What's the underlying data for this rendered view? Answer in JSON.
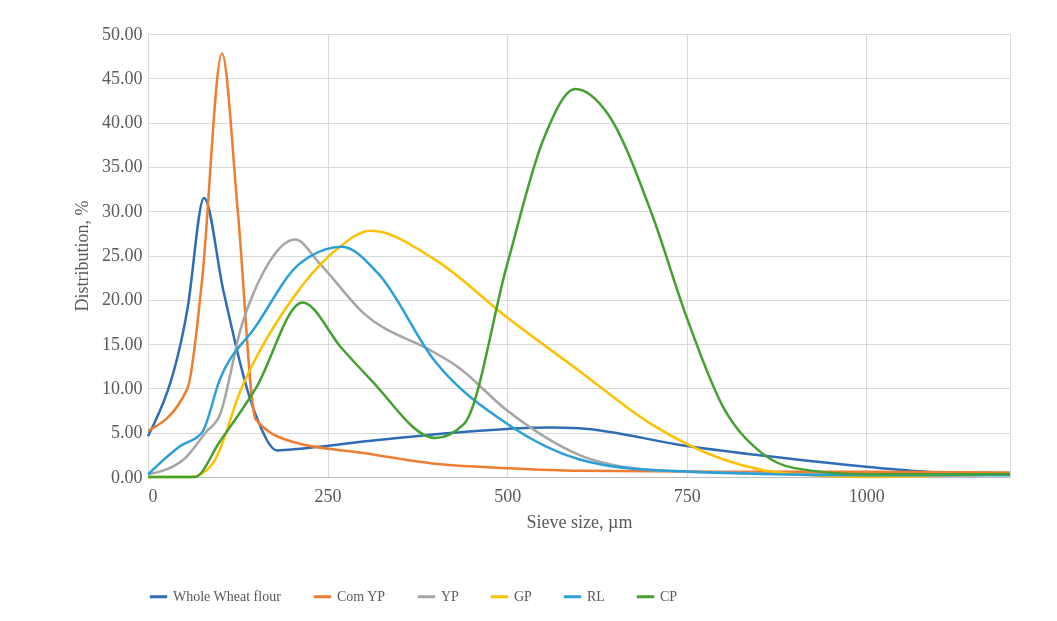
{
  "chart_data": {
    "type": "line",
    "xlabel": "Sieve size, µm",
    "ylabel": "Distribution, %",
    "xlim": [
      0,
      1200
    ],
    "xticks": [
      0,
      250,
      500,
      750,
      1000
    ],
    "ylim": [
      0,
      50
    ],
    "yticks": [
      {
        "value": 0,
        "label": "0.00"
      },
      {
        "value": 5,
        "label": "5.00"
      },
      {
        "value": 10,
        "label": "10.00"
      },
      {
        "value": 15,
        "label": "15.00"
      },
      {
        "value": 20,
        "label": "20.00"
      },
      {
        "value": 25,
        "label": "25.00"
      },
      {
        "value": 30,
        "label": "30.00"
      },
      {
        "value": 35,
        "label": "35.00"
      },
      {
        "value": 40,
        "label": "40.00"
      },
      {
        "value": 45,
        "label": "45.00"
      },
      {
        "value": 50,
        "label": "50.00"
      }
    ],
    "grid": true,
    "legend": "bottom",
    "marker": "none",
    "line_style": "solid",
    "series": [
      {
        "name": "Whole Wheat flour",
        "color": "#2e6db5",
        "x": [
          0,
          55,
          78,
          105,
          150,
          180,
          212,
          300,
          425,
          560,
          600,
          750,
          900,
          1020,
          1100,
          1200
        ],
        "values": [
          4.6,
          19,
          31.5,
          21,
          7,
          3,
          3.2,
          4,
          5,
          5.6,
          5.5,
          3.5,
          2,
          1,
          0.5,
          0.3
        ]
      },
      {
        "name": "Com YP",
        "color": "#ed7d31",
        "x": [
          0,
          55,
          75,
          103,
          125,
          150,
          200,
          300,
          400,
          500,
          600,
          800,
          1000,
          1200
        ],
        "values": [
          5.2,
          10,
          22,
          47.8,
          30,
          6.5,
          4,
          2.7,
          1.5,
          1,
          0.7,
          0.6,
          0.6,
          0.5
        ]
      },
      {
        "name": "YP",
        "color": "#a5a5a5",
        "x": [
          0,
          50,
          80,
          100,
          130,
          160,
          205,
          240,
          300,
          400,
          430,
          500,
          600,
          700,
          800,
          1000,
          1200
        ],
        "values": [
          0.3,
          2,
          5,
          7,
          17,
          23,
          26.8,
          24,
          18.5,
          14,
          12.5,
          7.5,
          2.5,
          0.8,
          0.5,
          0.3,
          0.3
        ]
      },
      {
        "name": "GP",
        "color": "#ffc000",
        "x": [
          0,
          60,
          90,
          130,
          200,
          260,
          310,
          400,
          500,
          600,
          700,
          800,
          900,
          1000,
          1200
        ],
        "values": [
          0,
          0,
          1.5,
          10,
          20,
          25.5,
          27.8,
          24.5,
          18,
          12,
          6,
          2,
          0.3,
          0,
          0.3
        ]
      },
      {
        "name": "RL",
        "color": "#2a9fd8",
        "x": [
          0,
          45,
          75,
          100,
          150,
          210,
          270,
          320,
          400,
          500,
          600,
          700,
          1000,
          1200
        ],
        "values": [
          0.3,
          3.5,
          5,
          11,
          17,
          24,
          26,
          23,
          13,
          6,
          2,
          0.8,
          0.2,
          0.2
        ]
      },
      {
        "name": "CP",
        "color": "#44a02f",
        "x": [
          0,
          65,
          100,
          150,
          215,
          270,
          310,
          400,
          440,
          500,
          550,
          595,
          640,
          700,
          750,
          800,
          850,
          900,
          1000,
          1200
        ],
        "values": [
          0,
          0,
          4,
          10,
          19.7,
          14.5,
          11,
          4.4,
          6,
          24,
          38,
          43.8,
          41,
          30,
          18,
          8,
          3,
          1,
          0.3,
          0.3
        ]
      }
    ]
  }
}
